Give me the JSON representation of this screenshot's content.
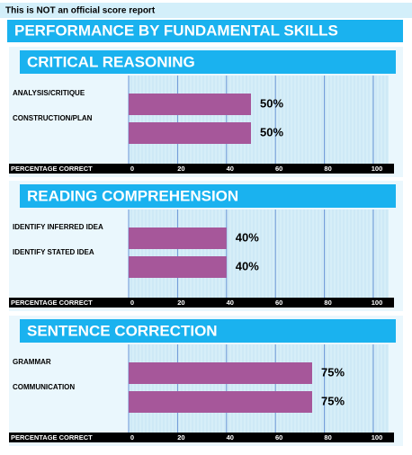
{
  "notice": "This is NOT an official score report",
  "title": "PERFORMANCE BY FUNDAMENTAL SKILLS",
  "chart_data": [
    {
      "type": "bar",
      "title": "CRITICAL REASONING",
      "categories": [
        "ANALYSIS/CRITIQUE",
        "CONSTRUCTION/PLAN"
      ],
      "values": [
        50,
        50
      ],
      "value_labels": [
        "50%",
        "50%"
      ],
      "xlabel": "PERCENTAGE CORRECT",
      "xlim": [
        0,
        100
      ],
      "xticks": [
        0,
        20,
        40,
        60,
        80,
        100
      ],
      "color": "#a6579a",
      "grid": true
    },
    {
      "type": "bar",
      "title": "READING COMPREHENSION",
      "categories": [
        "IDENTIFY INFERRED IDEA",
        "IDENTIFY STATED IDEA"
      ],
      "values": [
        40,
        40
      ],
      "value_labels": [
        "40%",
        "40%"
      ],
      "xlabel": "PERCENTAGE CORRECT",
      "xlim": [
        0,
        100
      ],
      "xticks": [
        0,
        20,
        40,
        60,
        80,
        100
      ],
      "color": "#a6579a",
      "grid": true
    },
    {
      "type": "bar",
      "title": "SENTENCE CORRECTION",
      "categories": [
        "GRAMMAR",
        "COMMUNICATION"
      ],
      "values": [
        75,
        75
      ],
      "value_labels": [
        "75%",
        "75%"
      ],
      "xlabel": "PERCENTAGE CORRECT",
      "xlim": [
        0,
        100
      ],
      "xticks": [
        0,
        20,
        40,
        60,
        80,
        100
      ],
      "color": "#a6579a",
      "grid": true
    }
  ]
}
